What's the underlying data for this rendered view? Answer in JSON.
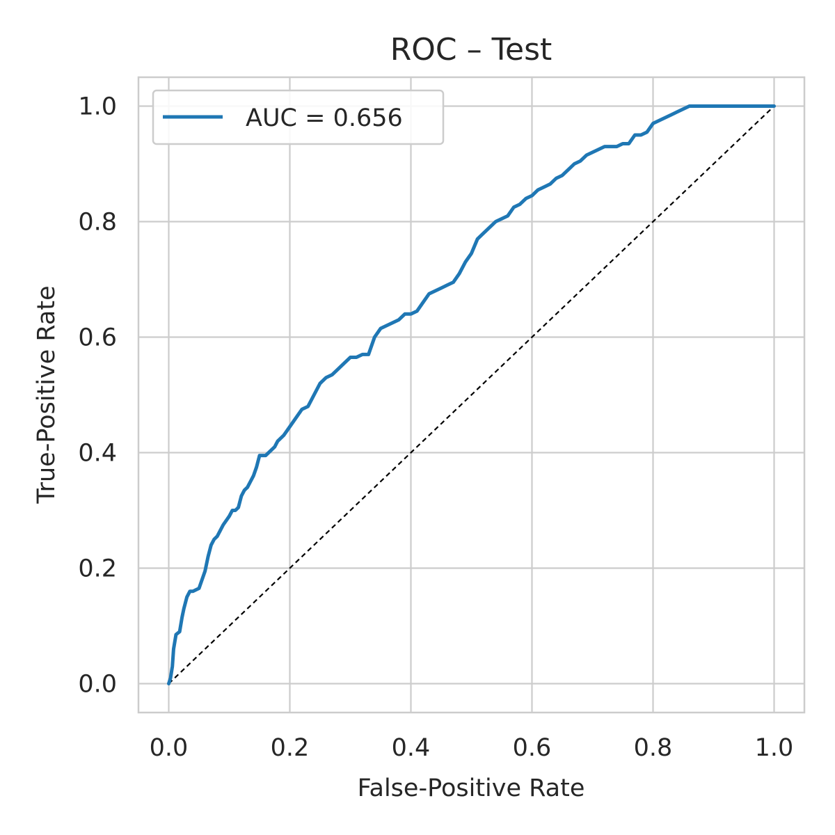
{
  "chart_data": {
    "type": "line",
    "title": "ROC – Test",
    "xlabel": "False-Positive Rate",
    "ylabel": "True-Positive Rate",
    "xlim": [
      -0.05,
      1.05
    ],
    "ylim": [
      -0.05,
      1.05
    ],
    "xticks": [
      0.0,
      0.2,
      0.4,
      0.6,
      0.8,
      1.0
    ],
    "yticks": [
      0.0,
      0.2,
      0.4,
      0.6,
      0.8,
      1.0
    ],
    "xtick_labels": [
      "0.0",
      "0.2",
      "0.4",
      "0.6",
      "0.8",
      "1.0"
    ],
    "ytick_labels": [
      "0.0",
      "0.2",
      "0.4",
      "0.6",
      "0.8",
      "1.0"
    ],
    "grid": true,
    "legend_position": "top-left",
    "series": [
      {
        "name": "AUC = 0.656",
        "color": "#1f77b4",
        "style": "solid",
        "x": [
          0.0,
          0.003,
          0.006,
          0.008,
          0.012,
          0.018,
          0.022,
          0.025,
          0.03,
          0.035,
          0.04,
          0.05,
          0.055,
          0.06,
          0.065,
          0.07,
          0.075,
          0.08,
          0.085,
          0.09,
          0.1,
          0.105,
          0.11,
          0.115,
          0.12,
          0.125,
          0.13,
          0.135,
          0.14,
          0.145,
          0.15,
          0.16,
          0.17,
          0.175,
          0.18,
          0.19,
          0.2,
          0.21,
          0.22,
          0.23,
          0.24,
          0.25,
          0.26,
          0.27,
          0.28,
          0.29,
          0.3,
          0.31,
          0.32,
          0.33,
          0.34,
          0.35,
          0.36,
          0.37,
          0.38,
          0.39,
          0.4,
          0.41,
          0.42,
          0.43,
          0.44,
          0.45,
          0.46,
          0.47,
          0.48,
          0.49,
          0.5,
          0.51,
          0.52,
          0.53,
          0.54,
          0.55,
          0.56,
          0.57,
          0.58,
          0.59,
          0.6,
          0.61,
          0.62,
          0.63,
          0.64,
          0.65,
          0.66,
          0.67,
          0.68,
          0.69,
          0.7,
          0.71,
          0.72,
          0.73,
          0.74,
          0.75,
          0.76,
          0.77,
          0.78,
          0.79,
          0.8,
          0.81,
          0.82,
          0.83,
          0.84,
          0.85,
          0.86,
          0.87,
          0.88,
          0.89,
          0.9,
          0.91,
          0.92,
          0.93,
          0.94,
          0.95,
          0.96,
          0.97,
          0.98,
          0.99,
          1.0
        ],
        "y": [
          0.0,
          0.01,
          0.03,
          0.06,
          0.085,
          0.09,
          0.115,
          0.13,
          0.15,
          0.16,
          0.16,
          0.165,
          0.18,
          0.195,
          0.22,
          0.24,
          0.25,
          0.255,
          0.265,
          0.275,
          0.29,
          0.3,
          0.3,
          0.305,
          0.325,
          0.335,
          0.34,
          0.35,
          0.36,
          0.375,
          0.395,
          0.395,
          0.405,
          0.41,
          0.42,
          0.43,
          0.445,
          0.46,
          0.475,
          0.48,
          0.5,
          0.52,
          0.53,
          0.535,
          0.545,
          0.555,
          0.565,
          0.565,
          0.57,
          0.57,
          0.6,
          0.615,
          0.62,
          0.625,
          0.63,
          0.64,
          0.64,
          0.645,
          0.66,
          0.675,
          0.68,
          0.685,
          0.69,
          0.695,
          0.71,
          0.73,
          0.745,
          0.77,
          0.78,
          0.79,
          0.8,
          0.805,
          0.81,
          0.825,
          0.83,
          0.84,
          0.845,
          0.855,
          0.86,
          0.865,
          0.875,
          0.88,
          0.89,
          0.9,
          0.905,
          0.915,
          0.92,
          0.925,
          0.93,
          0.93,
          0.93,
          0.935,
          0.935,
          0.95,
          0.95,
          0.955,
          0.97,
          0.975,
          0.98,
          0.985,
          0.99,
          0.995,
          1.0,
          1.0,
          1.0,
          1.0,
          1.0,
          1.0,
          1.0,
          1.0,
          1.0,
          1.0,
          1.0,
          1.0,
          1.0,
          1.0,
          1.0
        ]
      },
      {
        "color": "#000000",
        "style": "dashed",
        "x": [
          0.0,
          1.0
        ],
        "y": [
          0.0,
          1.0
        ]
      }
    ]
  }
}
